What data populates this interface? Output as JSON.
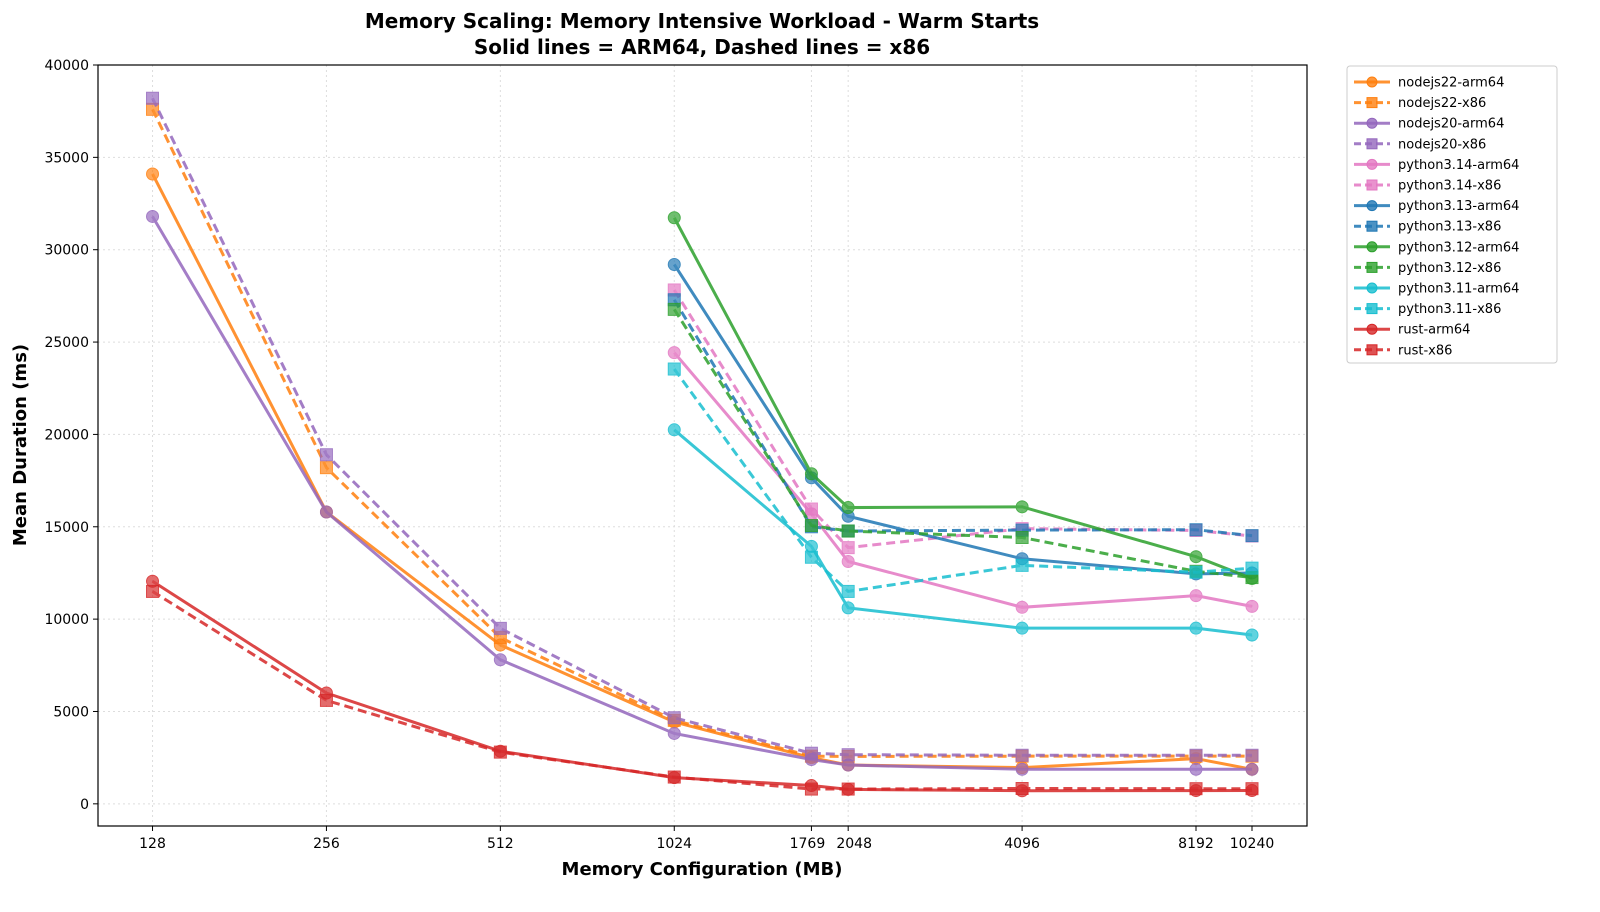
{
  "chart_data": {
    "type": "line",
    "title": "Memory Scaling: Memory Intensive Workload - Warm Starts",
    "subtitle": "Solid lines = ARM64, Dashed lines = x86",
    "xlabel": "Memory Configuration (MB)",
    "ylabel": "Mean Duration (ms)",
    "x_scale": "log2",
    "x_ticks": [
      128,
      256,
      512,
      1024,
      1769,
      2048,
      4096,
      8192,
      10240
    ],
    "xlim": [
      103,
      12750
    ],
    "y_ticks": [
      0,
      5000,
      10000,
      15000,
      20000,
      25000,
      30000,
      35000,
      40000
    ],
    "ylim": [
      -1200,
      40000
    ],
    "grid": true,
    "legend_placement": "outside-top-right",
    "series": [
      {
        "name": "nodejs22-arm64",
        "color": "#ff7f0e",
        "style": "solid",
        "marker": "circle",
        "x": [
          128,
          256,
          512,
          1024,
          1769,
          2048,
          4096,
          8192,
          10240
        ],
        "y": [
          34100,
          15800,
          8600,
          4430,
          2500,
          2100,
          1960,
          2450,
          1870
        ]
      },
      {
        "name": "nodejs22-x86",
        "color": "#ff7f0e",
        "style": "dashed",
        "marker": "square",
        "x": [
          128,
          256,
          512,
          1024,
          1769,
          2048,
          4096,
          8192,
          10240
        ],
        "y": [
          37600,
          18200,
          9000,
          4520,
          2580,
          2570,
          2580,
          2580,
          2580
        ]
      },
      {
        "name": "nodejs20-arm64",
        "color": "#9467bd",
        "style": "solid",
        "marker": "circle",
        "x": [
          128,
          256,
          512,
          1024,
          1769,
          2048,
          4096,
          8192,
          10240
        ],
        "y": [
          31800,
          15800,
          7800,
          3810,
          2400,
          2100,
          1870,
          1870,
          1870
        ]
      },
      {
        "name": "nodejs20-x86",
        "color": "#9467bd",
        "style": "dashed",
        "marker": "square",
        "x": [
          128,
          256,
          512,
          1024,
          1769,
          2048,
          4096,
          8192,
          10240
        ],
        "y": [
          38200,
          18900,
          9500,
          4660,
          2740,
          2660,
          2630,
          2630,
          2630
        ]
      },
      {
        "name": "python3.14-arm64",
        "color": "#e377c2",
        "style": "solid",
        "marker": "circle",
        "x": [
          1024,
          1769,
          2048,
          4096,
          8192,
          10240
        ],
        "y": [
          24430,
          15700,
          13120,
          10640,
          11270,
          10690
        ]
      },
      {
        "name": "python3.14-x86",
        "color": "#e377c2",
        "style": "dashed",
        "marker": "square",
        "x": [
          1024,
          1769,
          2048,
          4096,
          8192,
          10240
        ],
        "y": [
          27820,
          15960,
          13870,
          14900,
          14800,
          14500
        ]
      },
      {
        "name": "python3.13-arm64",
        "color": "#1f77b4",
        "style": "solid",
        "marker": "circle",
        "x": [
          1024,
          1769,
          2048,
          4096,
          8192,
          10240
        ],
        "y": [
          29200,
          17650,
          15570,
          13270,
          12450,
          12500
        ]
      },
      {
        "name": "python3.13-x86",
        "color": "#1f77b4",
        "style": "dashed",
        "marker": "square",
        "x": [
          1024,
          1769,
          2048,
          4096,
          8192,
          10240
        ],
        "y": [
          27290,
          15000,
          14770,
          14820,
          14840,
          14520
        ]
      },
      {
        "name": "python3.12-arm64",
        "color": "#2ca02c",
        "style": "solid",
        "marker": "circle",
        "x": [
          1024,
          1769,
          2048,
          4096,
          8192,
          10240
        ],
        "y": [
          31730,
          17870,
          16040,
          16080,
          13380,
          12200
        ]
      },
      {
        "name": "python3.12-x86",
        "color": "#2ca02c",
        "style": "dashed",
        "marker": "square",
        "x": [
          1024,
          1769,
          2048,
          4096,
          8192,
          10240
        ],
        "y": [
          26770,
          15070,
          14770,
          14420,
          12590,
          12250
        ]
      },
      {
        "name": "python3.11-arm64",
        "color": "#17becf",
        "style": "solid",
        "marker": "circle",
        "x": [
          1024,
          1769,
          2048,
          4096,
          8192,
          10240
        ],
        "y": [
          20250,
          13940,
          10610,
          9510,
          9510,
          9140
        ]
      },
      {
        "name": "python3.11-x86",
        "color": "#17becf",
        "style": "dashed",
        "marker": "square",
        "x": [
          1024,
          1769,
          2048,
          4096,
          8192,
          10240
        ],
        "y": [
          23540,
          13350,
          11500,
          12910,
          12540,
          12760
        ]
      },
      {
        "name": "rust-arm64",
        "color": "#d62728",
        "style": "solid",
        "marker": "circle",
        "x": [
          128,
          256,
          512,
          1024,
          1769,
          2048,
          4096,
          8192,
          10240
        ],
        "y": [
          12050,
          6000,
          2850,
          1420,
          990,
          780,
          710,
          718,
          720
        ]
      },
      {
        "name": "rust-x86",
        "color": "#d62728",
        "style": "dashed",
        "marker": "square",
        "x": [
          128,
          256,
          512,
          1024,
          1769,
          2048,
          4096,
          8192,
          10240
        ],
        "y": [
          11500,
          5600,
          2800,
          1450,
          800,
          800,
          830,
          820,
          820
        ]
      }
    ]
  }
}
